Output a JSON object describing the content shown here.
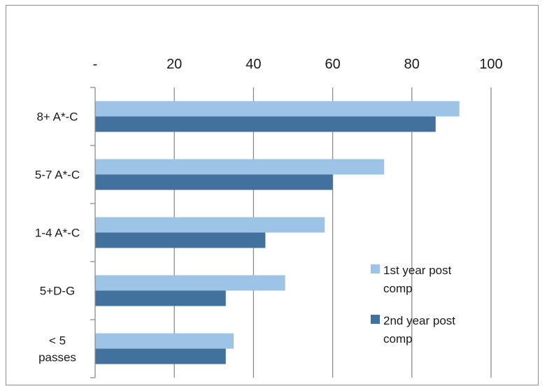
{
  "chart_data": {
    "type": "bar",
    "orientation": "horizontal",
    "title": "",
    "xlabel": "",
    "ylabel": "",
    "xlim": [
      0,
      100
    ],
    "x_ticks": [
      "-",
      "20",
      "40",
      "60",
      "80",
      "100"
    ],
    "x_tick_values": [
      0,
      20,
      40,
      60,
      80,
      100
    ],
    "x_axis_position": "top",
    "grid": true,
    "legend_position": "bottom-right",
    "categories": [
      [
        "8+ A*-C"
      ],
      [
        "5-7 A*-C"
      ],
      [
        "1-4 A*-C"
      ],
      [
        "5+D-G"
      ],
      [
        "< 5",
        "passes"
      ]
    ],
    "series": [
      {
        "name": [
          "1st year post",
          "comp"
        ],
        "color": "#9dc3e6",
        "values": [
          92,
          73,
          58,
          48,
          35
        ]
      },
      {
        "name": [
          "2nd year post",
          "comp"
        ],
        "color": "#41719c",
        "values": [
          86,
          60,
          43,
          33,
          33
        ]
      }
    ]
  }
}
